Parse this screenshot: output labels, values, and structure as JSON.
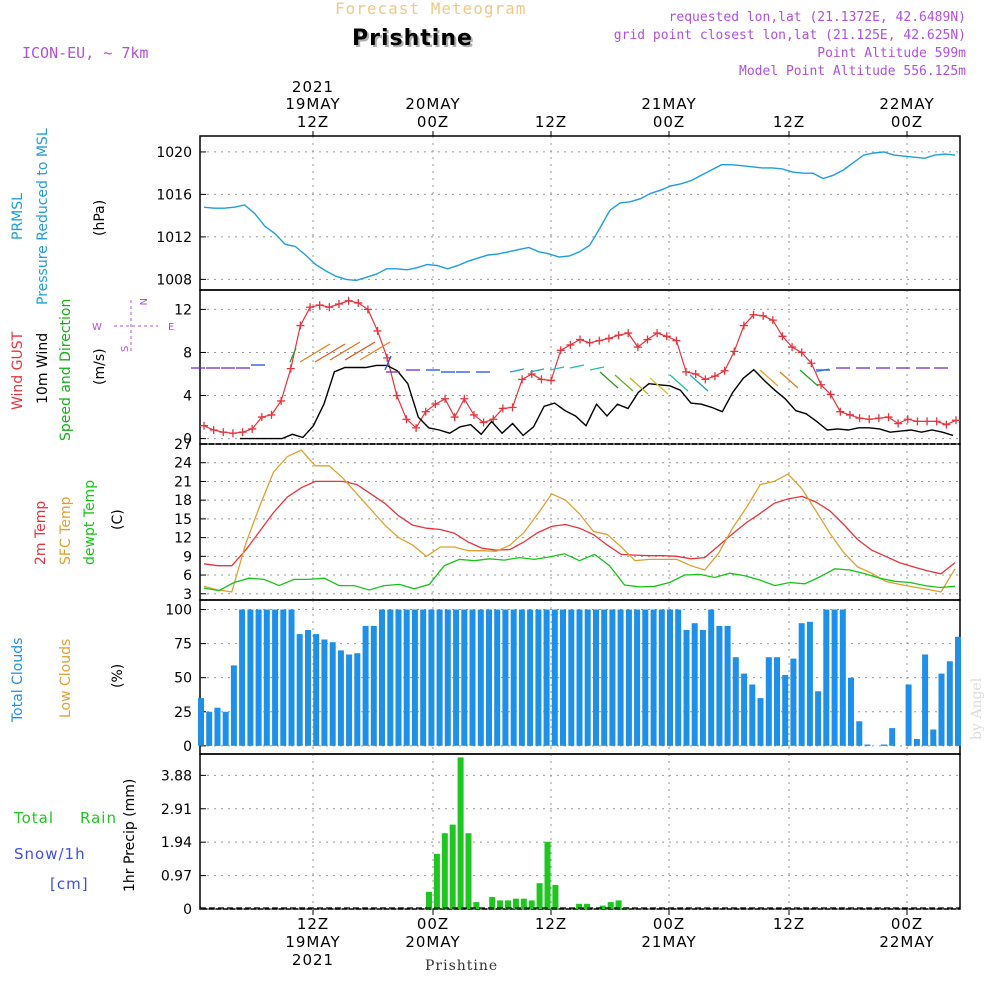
{
  "header": {
    "title": "Forecast Meteogram",
    "place": "Prishtine",
    "model": "ICON-EU, ~ 7km",
    "requested": "requested lon,lat (21.1372E, 42.6489N)",
    "grid_point": "grid point closest lon,lat (21.125E, 42.625N)",
    "point_alt": "Point Altitude 599m",
    "model_alt": "Model Point Altitude 556.125m"
  },
  "footer": {
    "place": "Prishtine",
    "credit": "by Angel"
  },
  "colors": {
    "pressure": "#1e9ee0",
    "gust": "#e8333c",
    "wind": "#000000",
    "direction": "#16b016",
    "temp": "#e8333c",
    "sfc": "#e0a030",
    "dewpt": "#16c516",
    "total_clouds": "#1e90e8",
    "low_clouds": "#d8a843",
    "rain": "#1ec71e",
    "snow": "#3c50e8",
    "purple": "#b050e0"
  },
  "chart_data": [
    {
      "type": "line",
      "panel": "pressure",
      "ylabel": [
        "PRMSL",
        "Pressure Reduced to MSL",
        "(hPa)"
      ],
      "yticks": [
        1008,
        1012,
        1016,
        1020
      ],
      "ylim": [
        1007,
        1021.5
      ],
      "series": [
        {
          "name": "PRMSL",
          "color": "#1e9ee0",
          "values": [
            1014.8,
            1014.7,
            1014.7,
            1014.8,
            1015,
            1014.2,
            1013,
            1012.3,
            1011.3,
            1011.1,
            1010.3,
            1009.4,
            1008.8,
            1008.3,
            1008,
            1007.9,
            1008.2,
            1008.5,
            1009,
            1009,
            1008.9,
            1009.1,
            1009.4,
            1009.3,
            1009,
            1009.3,
            1009.7,
            1010,
            1010.3,
            1010.4,
            1010.6,
            1010.8,
            1011,
            1010.6,
            1010.4,
            1010.1,
            1010.2,
            1010.6,
            1011.2,
            1012.8,
            1014.5,
            1015.2,
            1015.3,
            1015.6,
            1016.1,
            1016.4,
            1016.8,
            1017,
            1017.3,
            1017.8,
            1018.3,
            1018.8,
            1018.8,
            1018.7,
            1018.6,
            1018.5,
            1018.5,
            1018.4,
            1018.1,
            1018,
            1018,
            1017.5,
            1017.8,
            1018.3,
            1019,
            1019.7,
            1019.9,
            1020,
            1019.7,
            1019.6,
            1019.5,
            1019.4,
            1019.7,
            1019.8,
            1019.7
          ]
        }
      ]
    },
    {
      "type": "line",
      "panel": "wind",
      "ylabel": [
        "Wind GUST",
        "10m Wind",
        "Speed and Direction",
        "(m/s)"
      ],
      "compass": [
        "N",
        "W",
        "E",
        "S"
      ],
      "yticks": [
        0,
        4,
        8,
        12
      ],
      "ylim": [
        -0.5,
        13.8
      ],
      "series": [
        {
          "name": "Wind GUST",
          "color": "#e8333c",
          "marker": "+",
          "values": [
            1.2,
            0.8,
            0.6,
            0.5,
            0.6,
            0.9,
            2,
            2.2,
            3.5,
            6.5,
            10.5,
            12.2,
            12.4,
            12.2,
            12.5,
            12.8,
            12.6,
            12,
            10,
            7.5,
            4,
            1.8,
            1,
            2.5,
            3.2,
            3.7,
            2,
            3.7,
            2.2,
            1.5,
            1.8,
            2.8,
            2.9,
            5.5,
            6,
            5.5,
            5.4,
            8.2,
            8.7,
            9.2,
            8.9,
            9.1,
            9.3,
            9.6,
            9.8,
            8.5,
            9.2,
            9.8,
            9.5,
            9.1,
            6.2,
            6,
            5.5,
            5.8,
            6.3,
            8.1,
            10.5,
            11.5,
            11.4,
            11,
            9.5,
            8.5,
            8,
            7,
            5,
            4.1,
            2.5,
            2.2,
            1.9,
            1.8,
            1.9,
            2,
            1.4,
            1.8,
            1.6,
            1.6,
            1.6,
            1.3,
            1.7
          ]
        },
        {
          "name": "10m Wind",
          "color": "#000000",
          "values": [
            0,
            0,
            0,
            0,
            0,
            0.4,
            0.1,
            1.2,
            3.2,
            6.2,
            6.6,
            6.6,
            6.6,
            6.8,
            6.8,
            6.3,
            5.1,
            2,
            1,
            0.8,
            0.5,
            1.1,
            1.3,
            0.4,
            1.6,
            0.5,
            1.4,
            0.3,
            1.1,
            3,
            3.3,
            2.6,
            2.1,
            1.2,
            3.2,
            2.1,
            3.2,
            2.8,
            4.3,
            5.1,
            5,
            4.9,
            4.5,
            3.3,
            3.2,
            2.9,
            2.5,
            4.3,
            5.6,
            6.4,
            5.4,
            4.5,
            3.7,
            2.6,
            2.3,
            1.6,
            0.8,
            0.9,
            0.8,
            1,
            1,
            0.9,
            0.6,
            0.7,
            0.8,
            0.6,
            0.8,
            0.6,
            0.3
          ]
        }
      ]
    },
    {
      "type": "line",
      "panel": "temperature",
      "ylabel": [
        "2m Temp",
        "SFC Temp",
        "dewpt Temp",
        "(C)"
      ],
      "yticks": [
        3,
        6,
        9,
        12,
        15,
        18,
        21,
        24,
        27
      ],
      "ylim": [
        2,
        27
      ],
      "series": [
        {
          "name": "2m Temp",
          "color": "#e8333c",
          "values": [
            7.8,
            7.5,
            7.5,
            10,
            13,
            16,
            18.5,
            20,
            21,
            21,
            21,
            20.5,
            19,
            17.5,
            15.5,
            14,
            13.5,
            13.3,
            12.7,
            11.3,
            10.3,
            10,
            10.1,
            11.3,
            12.8,
            13.8,
            14.1,
            13.5,
            12.5,
            10.8,
            9.3,
            9.2,
            9.1,
            9.1,
            9,
            8.6,
            8.8,
            10.7,
            12.6,
            14.4,
            15.9,
            17.5,
            18.2,
            18.6,
            17.7,
            16.3,
            14.1,
            11.7,
            10,
            9,
            8,
            7.3,
            6.7,
            6.2,
            8
          ]
        },
        {
          "name": "SFC Temp",
          "color": "#e0a030",
          "values": [
            4.2,
            3.6,
            3.3,
            11,
            17,
            22.5,
            25,
            26,
            23.5,
            23.5,
            21.5,
            19,
            16.5,
            14,
            12,
            10.8,
            9,
            10.5,
            10.5,
            9.9,
            9.9,
            9.8,
            10.8,
            12.8,
            15.8,
            19,
            18,
            15.8,
            13,
            12.5,
            10.5,
            8.3,
            8.5,
            8.5,
            8.5,
            7.5,
            6.8,
            9.5,
            13.5,
            16.8,
            20.5,
            21,
            22.2,
            19.8,
            16.3,
            12.7,
            9.6,
            7.3,
            6.3,
            5,
            4.5,
            4.1,
            3.7,
            3.3,
            7
          ]
        },
        {
          "name": "dewpt Temp",
          "color": "#16c516",
          "values": [
            3.9,
            3.5,
            4.8,
            5.5,
            5.3,
            4.3,
            5.3,
            5.3,
            5.5,
            4.3,
            4.3,
            3.6,
            4.3,
            4.5,
            3.8,
            4.5,
            7.5,
            8.5,
            8.3,
            8.6,
            8.4,
            8.8,
            8.5,
            8.9,
            9.4,
            8.3,
            9.3,
            7.5,
            4.4,
            4.1,
            4.2,
            4.8,
            6,
            6.1,
            5.6,
            6.3,
            5.9,
            5.2,
            4.3,
            4.8,
            4.6,
            5.7,
            7,
            6.8,
            6.2,
            5.5,
            5,
            4.8,
            4.3,
            4,
            4.2
          ]
        }
      ]
    },
    {
      "type": "bar",
      "panel": "clouds",
      "ylabel": [
        "Total Clouds",
        "Low Clouds",
        "(%)"
      ],
      "yticks": [
        0,
        25,
        50,
        75,
        100
      ],
      "ylim": [
        -6,
        107
      ],
      "series": [
        {
          "name": "Total Clouds",
          "color": "#1e90e8",
          "values": [
            35,
            25,
            28,
            25,
            59,
            100,
            100,
            100,
            100,
            100,
            100,
            100,
            82,
            85,
            82,
            78,
            76,
            70,
            67,
            68,
            88,
            88,
            100,
            100,
            100,
            100,
            100,
            100,
            100,
            100,
            100,
            100,
            100,
            100,
            100,
            100,
            100,
            100,
            100,
            100,
            100,
            100,
            100,
            100,
            100,
            100,
            100,
            100,
            100,
            100,
            100,
            100,
            100,
            100,
            100,
            100,
            100,
            100,
            100,
            85,
            90,
            85,
            100,
            88,
            88,
            65,
            53,
            45,
            35,
            65,
            65,
            52,
            64,
            90,
            91,
            40,
            100,
            100,
            100,
            50,
            18,
            1,
            0,
            1,
            13,
            0,
            45,
            5,
            67,
            12,
            53,
            62,
            80
          ]
        },
        {
          "name": "Low Clouds",
          "color": "#d8a843",
          "values": [
            0,
            0,
            0,
            0,
            0,
            0,
            0,
            0,
            0,
            0,
            0,
            0,
            0,
            0,
            0,
            0,
            0,
            0,
            0,
            0,
            0,
            0,
            0,
            0,
            0,
            0,
            0,
            0,
            0,
            0,
            0,
            0,
            0,
            0,
            0,
            0,
            0,
            0,
            0,
            0,
            0,
            0,
            0,
            0,
            0,
            0,
            0,
            0,
            0,
            0,
            0,
            0,
            0,
            0,
            0,
            0,
            0,
            0,
            0,
            0,
            0,
            0,
            0,
            0,
            0,
            0,
            0,
            0,
            0,
            0,
            0,
            0,
            0,
            0,
            0,
            0,
            0,
            0,
            0,
            0,
            0,
            0,
            0,
            0,
            0,
            0,
            0,
            0,
            0,
            0,
            0,
            0,
            0
          ]
        }
      ]
    },
    {
      "type": "bar",
      "panel": "precip",
      "ylabel": [
        "Total",
        "Rain",
        "Snow/1h",
        "[cm]",
        "1hr Precip (mm)"
      ],
      "yticks": [
        "0",
        "0.97",
        "1.94",
        "2.91",
        "3.88"
      ],
      "yvals": [
        0,
        0.97,
        1.94,
        2.91,
        3.88
      ],
      "ylim": [
        0,
        4.5
      ],
      "series": [
        {
          "name": "Total Rain",
          "color": "#1ec71e",
          "values": [
            0.5,
            1.6,
            2.2,
            2.45,
            4.4,
            2.2,
            0.2,
            0,
            0.35,
            0.25,
            0.25,
            0.3,
            0.3,
            0.25,
            0.75,
            1.95,
            0.7,
            0,
            0,
            0.15,
            0.15,
            0,
            0.1,
            0.2,
            0.25,
            0.05
          ]
        }
      ]
    }
  ],
  "axis": {
    "top_labels": [
      {
        "l1": "2021",
        "l2": "19MAY",
        "l3": "12Z"
      },
      {
        "l1": "",
        "l2": "20MAY",
        "l3": "00Z"
      },
      {
        "l1": "",
        "l2": "",
        "l3": "12Z"
      },
      {
        "l1": "",
        "l2": "21MAY",
        "l3": "00Z"
      },
      {
        "l1": "",
        "l2": "",
        "l3": "12Z"
      },
      {
        "l1": "",
        "l2": "22MAY",
        "l3": "00Z"
      }
    ],
    "bottom_labels": [
      {
        "l1": "12Z",
        "l2": "19MAY",
        "l3": "2021"
      },
      {
        "l1": "00Z",
        "l2": "20MAY",
        "l3": ""
      },
      {
        "l1": "12Z",
        "l2": "",
        "l3": ""
      },
      {
        "l1": "00Z",
        "l2": "21MAY",
        "l3": ""
      },
      {
        "l1": "12Z",
        "l2": "",
        "l3": ""
      },
      {
        "l1": "00Z",
        "l2": "22MAY",
        "l3": ""
      }
    ]
  }
}
